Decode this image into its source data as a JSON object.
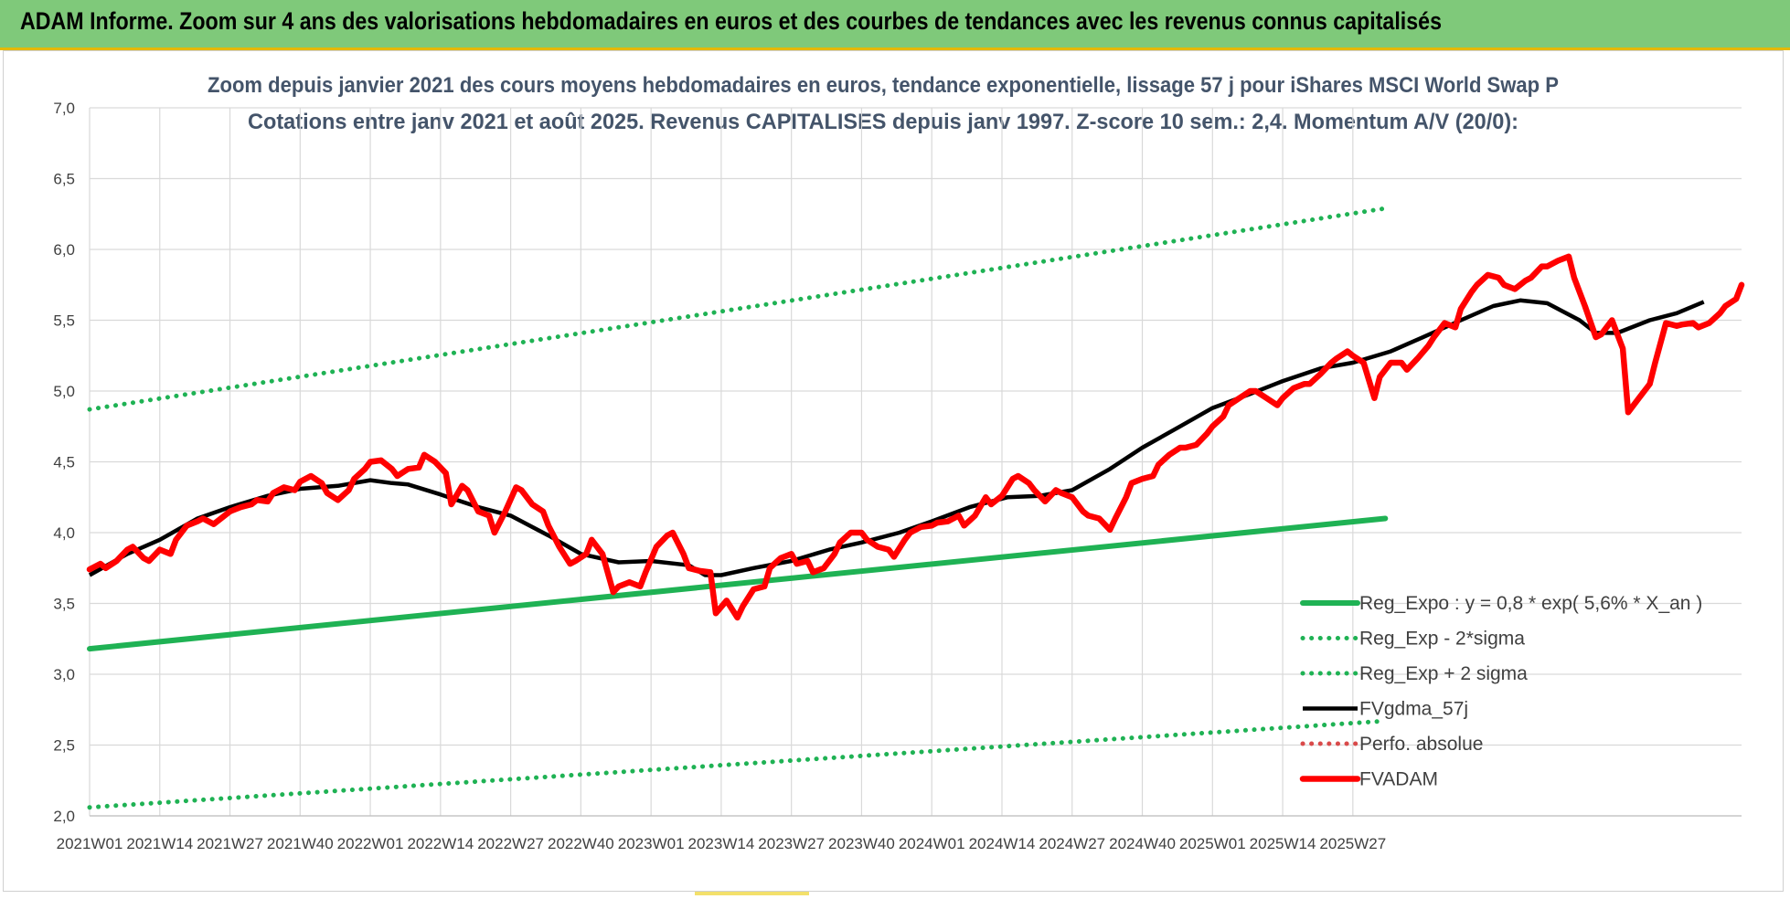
{
  "banner": {
    "title": "ADAM Informe. Zoom sur 4 ans des valorisations hebdomadaires en euros et des courbes de tendances avec les revenus connus capitalisés",
    "background": "#7fc97a"
  },
  "chart_data": {
    "type": "line",
    "title": "Zoom depuis janvier 2021 des cours moyens hebdomadaires en euros, tendance exponentielle, lissage 57 j pour iShares MSCI World Swap P",
    "subtitle": "Cotations entre janv 2021 et août 2025. Revenus CAPITALISES depuis janv 1997. Z-score 10 sem.: 2,4. Momentum A/V (20/0):",
    "xlabel": "",
    "ylabel": "",
    "ylim": [
      2.0,
      7.0
    ],
    "yticks": [
      "7,0",
      "6,5",
      "6,0",
      "5,5",
      "5,0",
      "4,5",
      "4,0",
      "3,5",
      "3,0",
      "2,5",
      "2,0"
    ],
    "xtick_labels": [
      "2021W01",
      "2021W14",
      "2021W27",
      "2021W40",
      "2022W01",
      "2022W14",
      "2022W27",
      "2022W40",
      "2023W01",
      "2023W14",
      "2023W27",
      "2023W40",
      "2024W01",
      "2024W14",
      "2024W27",
      "2024W40",
      "2025W01",
      "2025W14",
      "2025W27"
    ],
    "grid": true,
    "legend_position": "bottom-right",
    "series": [
      {
        "name": "Reg_Expo : y = 0,8 * exp( 5,6% *  X_an )",
        "color": "#1fb254",
        "style": "solid",
        "points": [
          [
            0,
            3.18
          ],
          [
            240,
            4.1
          ]
        ]
      },
      {
        "name": "Reg_Exp - 2*sigma",
        "color": "#1fb254",
        "style": "dotted",
        "points": [
          [
            0,
            2.06
          ],
          [
            240,
            2.67
          ]
        ]
      },
      {
        "name": "Reg_Exp + 2 sigma",
        "color": "#1fb254",
        "style": "dotted",
        "points": [
          [
            0,
            4.87
          ],
          [
            240,
            6.29
          ]
        ]
      },
      {
        "name": "FVgdma_57j",
        "color": "#000000",
        "style": "solid",
        "points": [
          [
            0,
            3.7
          ],
          [
            7,
            3.85
          ],
          [
            13,
            3.95
          ],
          [
            20,
            4.1
          ],
          [
            26,
            4.18
          ],
          [
            33,
            4.26
          ],
          [
            39,
            4.31
          ],
          [
            46,
            4.33
          ],
          [
            52,
            4.37
          ],
          [
            56,
            4.35
          ],
          [
            59,
            4.34
          ],
          [
            65,
            4.27
          ],
          [
            72,
            4.18
          ],
          [
            78,
            4.12
          ],
          [
            85,
            3.98
          ],
          [
            91,
            3.85
          ],
          [
            98,
            3.79
          ],
          [
            104,
            3.8
          ],
          [
            111,
            3.77
          ],
          [
            114,
            3.7
          ],
          [
            117,
            3.7
          ],
          [
            123,
            3.75
          ],
          [
            130,
            3.8
          ],
          [
            137,
            3.88
          ],
          [
            143,
            3.93
          ],
          [
            150,
            4.0
          ],
          [
            156,
            4.08
          ],
          [
            163,
            4.18
          ],
          [
            170,
            4.25
          ],
          [
            176,
            4.26
          ],
          [
            182,
            4.3
          ],
          [
            189,
            4.45
          ],
          [
            195,
            4.6
          ],
          [
            202,
            4.75
          ],
          [
            208,
            4.88
          ],
          [
            215,
            4.98
          ],
          [
            221,
            5.07
          ],
          [
            228,
            5.16
          ],
          [
            234,
            5.2
          ],
          [
            241,
            5.28
          ],
          [
            247,
            5.38
          ],
          [
            254,
            5.5
          ],
          [
            260,
            5.6
          ],
          [
            265,
            5.64
          ],
          [
            270,
            5.62
          ],
          [
            276,
            5.5
          ],
          [
            279,
            5.41
          ],
          [
            283,
            5.41
          ],
          [
            289,
            5.5
          ],
          [
            294,
            5.55
          ],
          [
            299,
            5.63
          ]
        ]
      },
      {
        "name": "Perfo. absolue",
        "color": "#d94a4a",
        "style": "dotted",
        "points": []
      },
      {
        "name": "FVADAM",
        "color": "#ff0000",
        "style": "solid",
        "points": [
          [
            0,
            3.74
          ],
          [
            2,
            3.78
          ],
          [
            3,
            3.75
          ],
          [
            5,
            3.8
          ],
          [
            7,
            3.88
          ],
          [
            8,
            3.9
          ],
          [
            10,
            3.82
          ],
          [
            11,
            3.8
          ],
          [
            13,
            3.88
          ],
          [
            15,
            3.85
          ],
          [
            16,
            3.95
          ],
          [
            18,
            4.05
          ],
          [
            20,
            4.08
          ],
          [
            21,
            4.1
          ],
          [
            23,
            4.06
          ],
          [
            25,
            4.12
          ],
          [
            26,
            4.15
          ],
          [
            28,
            4.18
          ],
          [
            30,
            4.2
          ],
          [
            31,
            4.23
          ],
          [
            33,
            4.22
          ],
          [
            34,
            4.28
          ],
          [
            36,
            4.32
          ],
          [
            38,
            4.3
          ],
          [
            39,
            4.36
          ],
          [
            41,
            4.4
          ],
          [
            43,
            4.35
          ],
          [
            44,
            4.28
          ],
          [
            46,
            4.23
          ],
          [
            48,
            4.3
          ],
          [
            49,
            4.38
          ],
          [
            51,
            4.45
          ],
          [
            52,
            4.5
          ],
          [
            54,
            4.51
          ],
          [
            56,
            4.45
          ],
          [
            57,
            4.4
          ],
          [
            59,
            4.45
          ],
          [
            61,
            4.46
          ],
          [
            62,
            4.55
          ],
          [
            64,
            4.5
          ],
          [
            66,
            4.42
          ],
          [
            67,
            4.2
          ],
          [
            69,
            4.33
          ],
          [
            70,
            4.3
          ],
          [
            72,
            4.15
          ],
          [
            74,
            4.12
          ],
          [
            75,
            4.0
          ],
          [
            77,
            4.15
          ],
          [
            79,
            4.32
          ],
          [
            80,
            4.3
          ],
          [
            82,
            4.2
          ],
          [
            84,
            4.15
          ],
          [
            85,
            4.05
          ],
          [
            87,
            3.9
          ],
          [
            89,
            3.78
          ],
          [
            90,
            3.8
          ],
          [
            92,
            3.85
          ],
          [
            93,
            3.95
          ],
          [
            95,
            3.85
          ],
          [
            97,
            3.58
          ],
          [
            98,
            3.62
          ],
          [
            100,
            3.65
          ],
          [
            102,
            3.62
          ],
          [
            103,
            3.72
          ],
          [
            105,
            3.9
          ],
          [
            107,
            3.98
          ],
          [
            108,
            4.0
          ],
          [
            110,
            3.85
          ],
          [
            111,
            3.75
          ],
          [
            113,
            3.73
          ],
          [
            115,
            3.72
          ],
          [
            116,
            3.43
          ],
          [
            118,
            3.52
          ],
          [
            120,
            3.4
          ],
          [
            121,
            3.48
          ],
          [
            123,
            3.6
          ],
          [
            125,
            3.62
          ],
          [
            126,
            3.75
          ],
          [
            128,
            3.82
          ],
          [
            130,
            3.85
          ],
          [
            131,
            3.78
          ],
          [
            133,
            3.8
          ],
          [
            134,
            3.72
          ],
          [
            136,
            3.75
          ],
          [
            138,
            3.85
          ],
          [
            139,
            3.93
          ],
          [
            141,
            4.0
          ],
          [
            143,
            4.0
          ],
          [
            144,
            3.95
          ],
          [
            146,
            3.9
          ],
          [
            148,
            3.88
          ],
          [
            149,
            3.83
          ],
          [
            151,
            3.95
          ],
          [
            152,
            4.0
          ],
          [
            154,
            4.04
          ],
          [
            156,
            4.05
          ],
          [
            157,
            4.07
          ],
          [
            159,
            4.08
          ],
          [
            161,
            4.12
          ],
          [
            162,
            4.05
          ],
          [
            164,
            4.12
          ],
          [
            166,
            4.25
          ],
          [
            167,
            4.2
          ],
          [
            169,
            4.26
          ],
          [
            171,
            4.38
          ],
          [
            172,
            4.4
          ],
          [
            174,
            4.35
          ],
          [
            175,
            4.3
          ],
          [
            177,
            4.22
          ],
          [
            179,
            4.3
          ],
          [
            180,
            4.28
          ],
          [
            182,
            4.25
          ],
          [
            184,
            4.15
          ],
          [
            185,
            4.12
          ],
          [
            187,
            4.1
          ],
          [
            189,
            4.02
          ],
          [
            190,
            4.1
          ],
          [
            192,
            4.25
          ],
          [
            193,
            4.35
          ],
          [
            195,
            4.38
          ],
          [
            197,
            4.4
          ],
          [
            198,
            4.48
          ],
          [
            200,
            4.55
          ],
          [
            202,
            4.6
          ],
          [
            203,
            4.6
          ],
          [
            205,
            4.62
          ],
          [
            207,
            4.7
          ],
          [
            208,
            4.75
          ],
          [
            210,
            4.82
          ],
          [
            211,
            4.9
          ],
          [
            213,
            4.95
          ],
          [
            215,
            5.0
          ],
          [
            216,
            5.0
          ],
          [
            218,
            4.95
          ],
          [
            220,
            4.9
          ],
          [
            221,
            4.95
          ],
          [
            223,
            5.02
          ],
          [
            225,
            5.05
          ],
          [
            226,
            5.05
          ],
          [
            228,
            5.12
          ],
          [
            230,
            5.2
          ],
          [
            231,
            5.23
          ],
          [
            233,
            5.28
          ],
          [
            234,
            5.25
          ],
          [
            236,
            5.2
          ],
          [
            238,
            4.95
          ],
          [
            239,
            5.1
          ],
          [
            241,
            5.2
          ],
          [
            243,
            5.2
          ],
          [
            244,
            5.15
          ],
          [
            246,
            5.23
          ],
          [
            248,
            5.32
          ],
          [
            249,
            5.38
          ],
          [
            251,
            5.48
          ],
          [
            253,
            5.45
          ],
          [
            254,
            5.58
          ],
          [
            256,
            5.7
          ],
          [
            257,
            5.75
          ],
          [
            259,
            5.82
          ],
          [
            261,
            5.8
          ],
          [
            262,
            5.75
          ],
          [
            264,
            5.72
          ],
          [
            266,
            5.78
          ],
          [
            267,
            5.8
          ],
          [
            269,
            5.88
          ],
          [
            270,
            5.88
          ],
          [
            272,
            5.92
          ],
          [
            274,
            5.95
          ],
          [
            275,
            5.8
          ],
          [
            277,
            5.6
          ],
          [
            279,
            5.38
          ],
          [
            280,
            5.4
          ],
          [
            282,
            5.5
          ],
          [
            284,
            5.3
          ],
          [
            285,
            4.85
          ],
          [
            287,
            4.95
          ],
          [
            289,
            5.05
          ],
          [
            290,
            5.2
          ],
          [
            292,
            5.48
          ],
          [
            294,
            5.46
          ],
          [
            295,
            5.47
          ],
          [
            297,
            5.48
          ],
          [
            298,
            5.45
          ],
          [
            300,
            5.48
          ],
          [
            302,
            5.55
          ],
          [
            303,
            5.6
          ],
          [
            305,
            5.65
          ],
          [
            306,
            5.75
          ]
        ]
      }
    ]
  }
}
